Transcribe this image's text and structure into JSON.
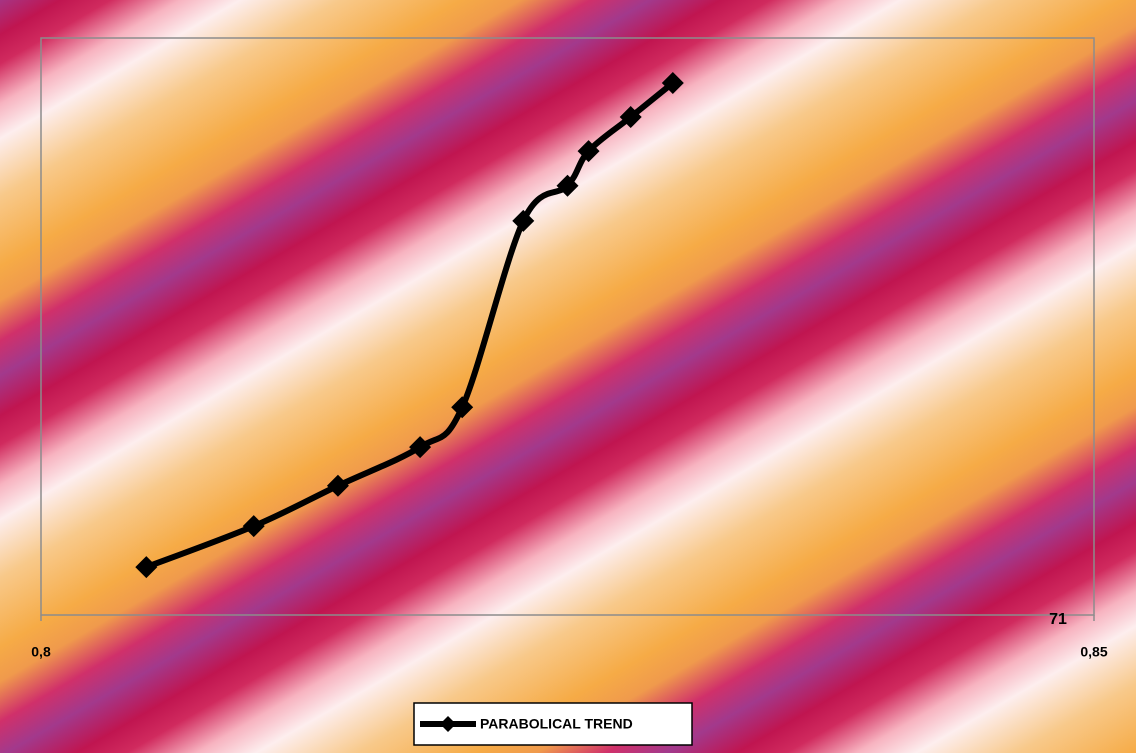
{
  "chart_data": {
    "type": "line",
    "x": [
      0.805,
      0.8101,
      0.8141,
      0.818,
      0.82,
      0.8229,
      0.825,
      0.826,
      0.828,
      0.83
    ],
    "series": [
      {
        "name": "PARABOLICAL TREND",
        "color": "#000000",
        "values": [
          8.3,
          15.4,
          22.4,
          29.1,
          36,
          68.3,
          74.4,
          80.4,
          86.3,
          92.2
        ]
      }
    ],
    "xlim": [
      0.8,
      0.85
    ],
    "xticks": [
      {
        "value": 0.8,
        "label": "0,8"
      },
      {
        "value": 0.85,
        "label": "0,85"
      }
    ],
    "ylim": [
      0,
      100
    ],
    "annotation": "71",
    "legend": "bottom",
    "smooth": true
  }
}
